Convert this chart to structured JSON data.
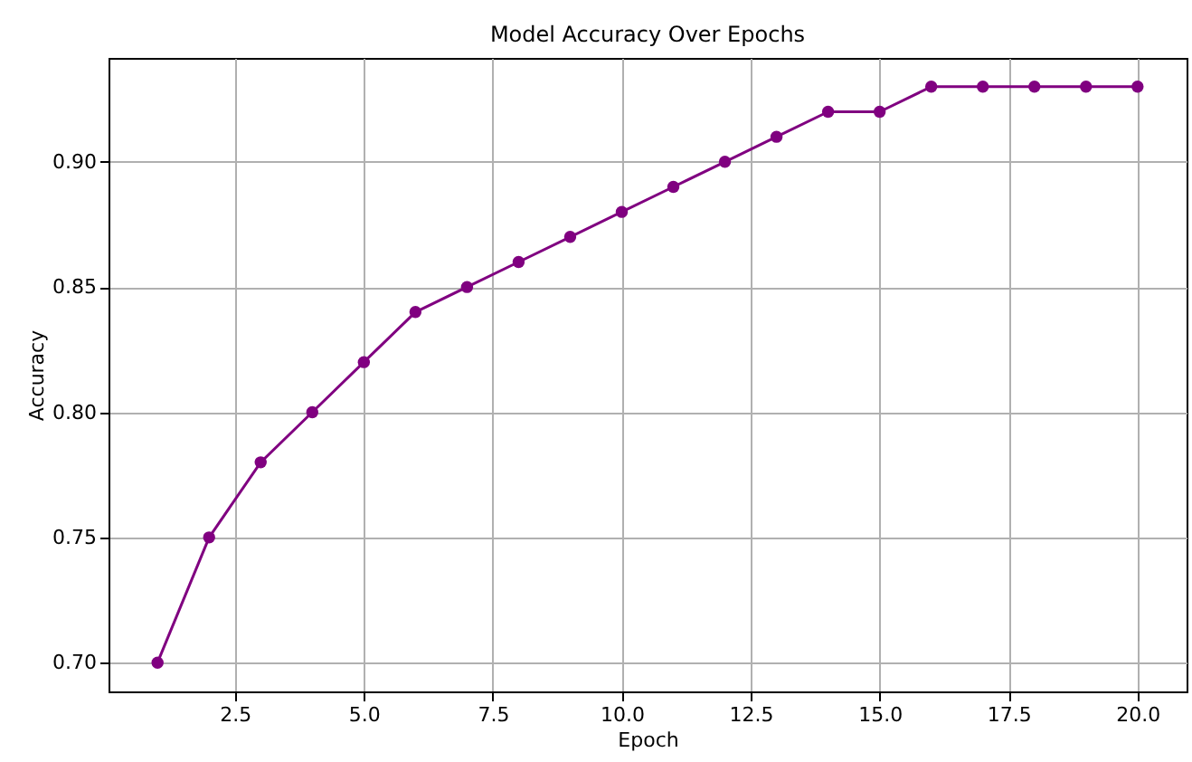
{
  "chart_data": {
    "type": "line",
    "title": "Model Accuracy Over Epochs",
    "xlabel": "Epoch",
    "ylabel": "Accuracy",
    "x": [
      1,
      2,
      3,
      4,
      5,
      6,
      7,
      8,
      9,
      10,
      11,
      12,
      13,
      14,
      15,
      16,
      17,
      18,
      19,
      20
    ],
    "series": [
      {
        "color": "#800080",
        "values": [
          0.7,
          0.75,
          0.78,
          0.8,
          0.82,
          0.84,
          0.85,
          0.86,
          0.87,
          0.88,
          0.89,
          0.9,
          0.91,
          0.92,
          0.92,
          0.93,
          0.93,
          0.93,
          0.93,
          0.93
        ]
      }
    ],
    "xlim": [
      0.05,
      20.95
    ],
    "ylim": [
      0.6885,
      0.9415
    ],
    "xticks": [
      {
        "value": 2.5,
        "label": "2.5"
      },
      {
        "value": 5,
        "label": "5.0"
      },
      {
        "value": 7.5,
        "label": "7.5"
      },
      {
        "value": 10,
        "label": "10.0"
      },
      {
        "value": 12.5,
        "label": "12.5"
      },
      {
        "value": 15,
        "label": "15.0"
      },
      {
        "value": 17.5,
        "label": "17.5"
      },
      {
        "value": 20,
        "label": "20.0"
      }
    ],
    "yticks": [
      {
        "value": 0.7,
        "label": "0.70"
      },
      {
        "value": 0.75,
        "label": "0.75"
      },
      {
        "value": 0.8,
        "label": "0.80"
      },
      {
        "value": 0.85,
        "label": "0.85"
      },
      {
        "value": 0.9,
        "label": "0.90"
      }
    ],
    "grid": true,
    "marker": "circle",
    "line_style": "solid"
  }
}
